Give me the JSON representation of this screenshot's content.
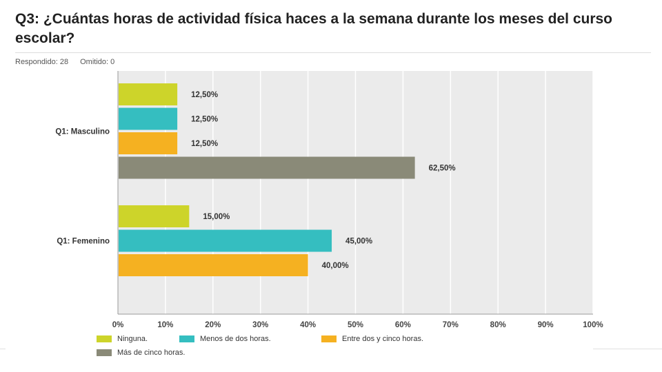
{
  "page": {
    "title": "Q3: ¿Cuántas horas de actividad física haces a la semana durante los meses del curso escolar?",
    "answered": "Respondido: 28",
    "skipped": "Omitido: 0"
  },
  "chart_data": {
    "type": "bar",
    "orientation": "horizontal",
    "categories": [
      "Q1: Masculino",
      "Q1: Femenino"
    ],
    "series": [
      {
        "name": "Ninguna.",
        "color": "#cdd42a",
        "values": [
          12.5,
          15.0
        ],
        "labels": [
          "12,50%",
          "15,00%"
        ]
      },
      {
        "name": "Menos de dos horas.",
        "color": "#35bec0",
        "values": [
          12.5,
          45.0
        ],
        "labels": [
          "12,50%",
          "45,00%"
        ]
      },
      {
        "name": "Entre dos y cinco horas.",
        "color": "#f5b121",
        "values": [
          12.5,
          40.0
        ],
        "labels": [
          "12,50%",
          "40,00%"
        ]
      },
      {
        "name": "Más de cinco horas.",
        "color": "#8a8a78",
        "values": [
          62.5,
          null
        ],
        "labels": [
          "62,50%",
          ""
        ]
      }
    ],
    "xlim": [
      0,
      100
    ],
    "xticks": [
      "0%",
      "10%",
      "20%",
      "30%",
      "40%",
      "50%",
      "60%",
      "70%",
      "80%",
      "90%",
      "100%"
    ],
    "grid": true,
    "legend_position": "bottom"
  }
}
